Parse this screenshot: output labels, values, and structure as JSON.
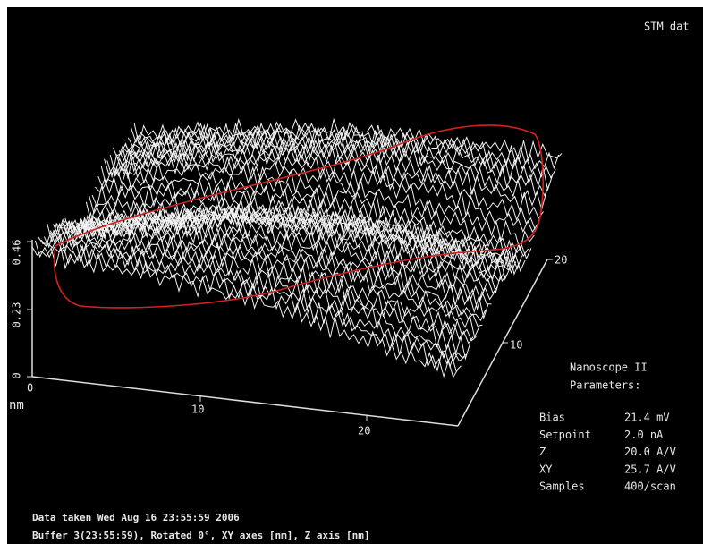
{
  "header": {
    "title": "STM dat"
  },
  "axes": {
    "z_ticks": [
      "0.46",
      "0.23",
      "0"
    ],
    "x_ticks": [
      "0",
      "10",
      "20"
    ],
    "x_unit": "nm",
    "y_ticks": [
      "20",
      "10"
    ]
  },
  "parameters": {
    "title": [
      "Nanoscope II",
      "Parameters:"
    ],
    "rows": [
      {
        "label": "Bias",
        "value": "21.4 mV"
      },
      {
        "label": "Setpoint",
        "value": "2.0 nA"
      },
      {
        "label": "Z",
        "value": "20.0 A/V"
      },
      {
        "label": "XY",
        "value": "25.7 A/V"
      },
      {
        "label": "Samples",
        "value": "400/scan"
      }
    ]
  },
  "footer": {
    "lines": [
      "Data taken Wed Aug 16 23:55:59 2006",
      "Buffer 3(23:55:59), Rotated 0°, XY axes [nm], Z axis [nm]"
    ]
  }
}
